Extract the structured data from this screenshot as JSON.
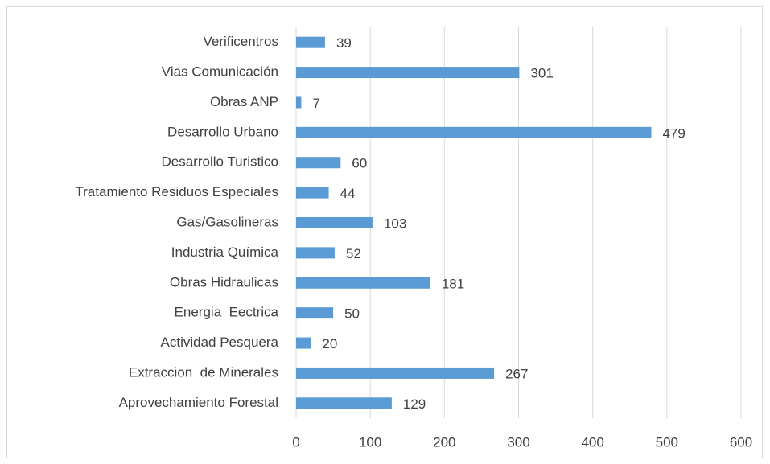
{
  "chart_data": {
    "type": "hbar",
    "categories": [
      "Verificentros",
      "Vias Comunicación",
      "Obras ANP",
      "Desarrollo Urbano",
      "Desarrollo Turistico",
      "Tratamiento Residuos Especiales",
      "Gas/Gasolineras",
      "Industria Química",
      "Obras Hidraulicas",
      "Energia  Eectrica",
      "Actividad Pesquera",
      "Extraccion  de Minerales",
      "Aprovechamiento Forestal"
    ],
    "values": [
      39,
      301,
      7,
      479,
      60,
      44,
      103,
      52,
      181,
      50,
      20,
      267,
      129
    ],
    "color": "#5b9bd5",
    "xlim": [
      0,
      600
    ],
    "xticks": [
      0,
      100,
      200,
      300,
      400,
      500,
      600
    ],
    "grid": true
  }
}
